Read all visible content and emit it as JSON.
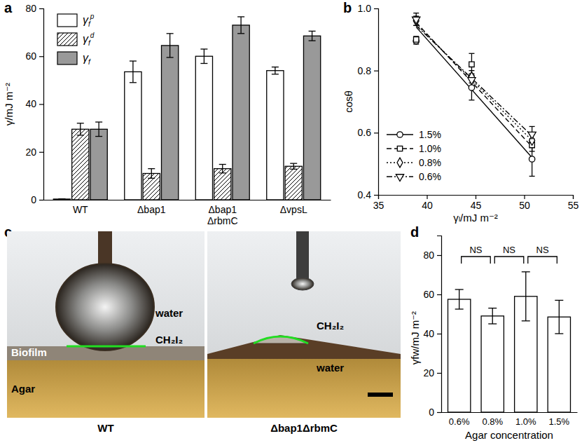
{
  "chart_data": [
    {
      "type": "bar",
      "panel_label": "a",
      "ylabel": "γ/mJ m⁻²",
      "categories": [
        "WT",
        "Δbap1",
        "Δbap1\nΔrbmC",
        "ΔvpsL"
      ],
      "series": [
        {
          "name": "γfp",
          "color": "#ffffff",
          "values": [
            0.3,
            53.5,
            60,
            54
          ],
          "errors": [
            0,
            4.5,
            3,
            1.5
          ]
        },
        {
          "name": "γfd",
          "color": "#ffffff",
          "marker": "hatch",
          "values": [
            29.5,
            11,
            13,
            14
          ],
          "errors": [
            2.5,
            2,
            1.8,
            1.2
          ]
        },
        {
          "name": "γf",
          "color": "#999999",
          "values": [
            29.5,
            64.5,
            73,
            68.5
          ],
          "errors": [
            3,
            5,
            3.5,
            2
          ]
        }
      ],
      "ylim": [
        0,
        80
      ],
      "yticks": [
        0,
        20,
        40,
        60,
        80
      ],
      "legend": "upper left"
    },
    {
      "type": "scatter",
      "panel_label": "b",
      "xlabel": "γₗ/mJ m⁻²",
      "ylabel": "cosθ",
      "x": [
        38.9,
        44.6,
        50.8
      ],
      "series": [
        {
          "name": "1.5%",
          "marker": "circle",
          "line_style": "solid",
          "values": [
            0.895,
            0.745,
            0.515
          ],
          "errors": [
            0.01,
            0.04,
            0.055
          ],
          "fit_x": [
            38.9,
            50.8
          ],
          "fit_values": [
            0.94,
            0.52
          ]
        },
        {
          "name": "1.0%",
          "marker": "square",
          "line_style": "dashed",
          "values": [
            0.9,
            0.82,
            0.56
          ],
          "errors": [
            0.01,
            0.035,
            0.02
          ],
          "fit_x": [
            38.9,
            50.8
          ],
          "fit_values": [
            0.955,
            0.555
          ]
        },
        {
          "name": "0.8%",
          "marker": "diamond",
          "line_style": "dotted",
          "values": [
            0.96,
            0.78,
            0.575
          ],
          "errors": [
            0.015,
            0.02,
            0.02
          ],
          "fit_x": [
            38.9,
            50.8
          ],
          "fit_values": [
            0.95,
            0.575
          ]
        },
        {
          "name": "0.6%",
          "marker": "triangle-down",
          "line_style": "dashdot",
          "values": [
            0.965,
            0.77,
            0.595
          ],
          "errors": [
            0.02,
            0.02,
            0.025
          ],
          "fit_x": [
            38.9,
            50.8
          ],
          "fit_values": [
            0.945,
            0.59
          ]
        }
      ],
      "xlim": [
        35,
        55
      ],
      "xticks": [
        35,
        40,
        45,
        50,
        55
      ],
      "ylim": [
        0.4,
        1.0
      ],
      "yticks": [
        0.4,
        0.6,
        0.8,
        {
          "value": 1.0,
          "label": "1.0"
        }
      ],
      "legend": "lower left"
    },
    {
      "type": "image",
      "panel_label": "c",
      "images": [
        {
          "caption": "WT",
          "labels": [
            "water",
            "CH₂I₂",
            "Biofilm",
            "Agar"
          ]
        },
        {
          "caption": "Δbap1ΔrbmC",
          "labels": [
            "CH₂I₂",
            "water"
          ]
        }
      ]
    },
    {
      "type": "bar",
      "panel_label": "d",
      "xlabel": "Agar concentration",
      "ylabel": "γfw/mJ m⁻²",
      "categories": [
        "0.6%",
        "0.8%",
        "1.0%",
        "1.5%"
      ],
      "values": [
        57.5,
        49,
        59,
        48.5
      ],
      "errors": [
        5,
        4,
        12.5,
        8.5
      ],
      "color": "#ffffff",
      "ylim": [
        0,
        90
      ],
      "yticks": [
        0,
        20,
        40,
        60,
        80
      ],
      "annotations": [
        {
          "text": "NS",
          "between": [
            0,
            1
          ]
        },
        {
          "text": "NS",
          "between": [
            1,
            2
          ]
        },
        {
          "text": "NS",
          "between": [
            2,
            3
          ]
        }
      ]
    }
  ]
}
